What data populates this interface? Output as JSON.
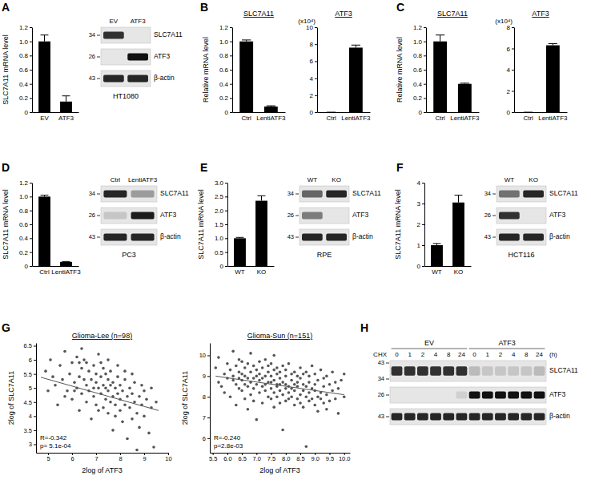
{
  "chart_data": [
    {
      "type": "bar",
      "panel": "A",
      "y_label": "SLC7A11 mRNA level",
      "categories": [
        "EV",
        "ATF3"
      ],
      "values": [
        1.0,
        0.15
      ],
      "errors": [
        0.09,
        0.08
      ],
      "color": "#000000",
      "ylim": [
        0,
        1.2
      ],
      "yticks": [
        0,
        0.2,
        0.4,
        0.6,
        0.8,
        {
          "value": 1,
          "label": "1.0"
        },
        1.2
      ]
    },
    {
      "type": "blot",
      "title": "HT1080",
      "lanes": [
        "EV",
        "ATF3"
      ],
      "rows": [
        {
          "name": "SLC7A11",
          "kda": [
            34
          ],
          "bands": [
            0.85,
            0.0
          ]
        },
        {
          "name": "ATF3",
          "kda": [
            26
          ],
          "bands": [
            0.0,
            1.0
          ]
        },
        {
          "name": "β-actin",
          "kda": [
            43
          ],
          "bands": [
            0.9,
            0.9
          ]
        }
      ]
    },
    {
      "type": "bar",
      "panel": "B",
      "title": "SLC7A11",
      "y_label": "Relative mRNA level",
      "categories": [
        "Ctrl",
        "LentiATF3"
      ],
      "values": [
        1.0,
        0.08
      ],
      "errors": [
        0.02,
        0.01
      ],
      "color": "#000000",
      "ylim": [
        0,
        1.2
      ],
      "yticks": [
        0,
        0.2,
        0.4,
        0.6,
        0.8,
        {
          "value": 1,
          "label": "1.0"
        },
        1.2
      ]
    },
    {
      "type": "bar",
      "title": "ATF3",
      "annotations": [
        "(x10⁴)"
      ],
      "categories": [
        "Ctrl",
        "LentiATF3"
      ],
      "values": [
        0,
        7.6
      ],
      "errors": [
        0,
        0.3
      ],
      "color": "#000000",
      "ylim": [
        0,
        10
      ],
      "yticks": [
        0,
        2,
        4,
        6,
        8,
        10
      ]
    },
    {
      "type": "bar",
      "panel": "C",
      "title": "SLC7A11",
      "y_label": "Relative mRNA level",
      "categories": [
        "Ctrl",
        "LentiATF3"
      ],
      "values": [
        1.0,
        0.4
      ],
      "errors": [
        0.09,
        0.01
      ],
      "color": "#000000",
      "ylim": [
        0,
        1.2
      ],
      "yticks": [
        0,
        0.2,
        0.4,
        0.6,
        0.8,
        {
          "value": 1,
          "label": "1.0"
        },
        1.2
      ]
    },
    {
      "type": "bar",
      "title": "ATF3",
      "annotations": [
        "(x10⁴)"
      ],
      "categories": [
        "Ctrl",
        "LentiATF3"
      ],
      "values": [
        0,
        6.3
      ],
      "errors": [
        0,
        0.15
      ],
      "color": "#000000",
      "ylim": [
        0,
        8
      ],
      "yticks": [
        0,
        2,
        4,
        6,
        8
      ]
    },
    {
      "type": "bar",
      "panel": "D",
      "y_label": "SLC7A11 mRNA level",
      "categories": [
        "Ctrl",
        "LentiATF3"
      ],
      "values": [
        1.0,
        0.06
      ],
      "errors": [
        0.02,
        0.005
      ],
      "color": "#000000",
      "ylim": [
        0,
        1.2
      ],
      "yticks": [
        0,
        0.2,
        0.4,
        0.6,
        0.8,
        {
          "value": 1,
          "label": "1.0"
        },
        1.2
      ]
    },
    {
      "type": "blot",
      "title": "PC3",
      "lanes": [
        "Ctrl",
        "LentiATF3"
      ],
      "rows": [
        {
          "name": "SLC7A11",
          "kda": [
            34
          ],
          "bands": [
            0.9,
            0.35
          ]
        },
        {
          "name": "ATF3",
          "kda": [
            26
          ],
          "bands": [
            0.15,
            0.95
          ]
        },
        {
          "name": "β-actin",
          "kda": [
            43
          ],
          "bands": [
            0.9,
            0.9
          ]
        }
      ]
    },
    {
      "type": "bar",
      "panel": "E",
      "y_label": "SLC7A11 mRNA level",
      "categories": [
        "WT",
        "KO"
      ],
      "values": [
        1.0,
        2.35
      ],
      "errors": [
        0.03,
        0.18
      ],
      "color": "#000000",
      "ylim": [
        0,
        3
      ],
      "yticks": [
        0,
        0.5,
        {
          "value": 1,
          "label": "1.0"
        },
        1.5,
        {
          "value": 2,
          "label": "2.0"
        },
        2.5,
        {
          "value": 3,
          "label": "3.0"
        }
      ]
    },
    {
      "type": "blot",
      "title": "RPE",
      "lanes": [
        "WT",
        "KO"
      ],
      "rows": [
        {
          "name": "SLC7A11",
          "kda": [
            34
          ],
          "bands": [
            0.6,
            0.9
          ]
        },
        {
          "name": "ATF3",
          "kda": [
            26
          ],
          "bands": [
            0.5,
            0.0
          ]
        },
        {
          "name": "β-actin",
          "kda": [
            43
          ],
          "bands": [
            0.9,
            0.9
          ]
        }
      ]
    },
    {
      "type": "bar",
      "panel": "F",
      "y_label": "SLC7A11 mRNA level",
      "categories": [
        "WT",
        "KO"
      ],
      "values": [
        1.0,
        3.05
      ],
      "errors": [
        0.08,
        0.35
      ],
      "color": "#000000",
      "ylim": [
        0,
        4
      ],
      "yticks": [
        0,
        1,
        2,
        3,
        4
      ]
    },
    {
      "type": "blot",
      "title": "HCT116",
      "lanes": [
        "WT",
        "KO"
      ],
      "rows": [
        {
          "name": "SLC7A11",
          "kda": [
            34
          ],
          "bands": [
            0.55,
            0.9
          ]
        },
        {
          "name": "ATF3",
          "kda": [
            26
          ],
          "bands": [
            0.85,
            0.0
          ]
        },
        {
          "name": "β-actin",
          "kda": [
            43
          ],
          "bands": [
            0.9,
            0.9
          ]
        }
      ]
    },
    {
      "type": "scatter",
      "panel": "G",
      "title": "Glioma-Lee (n=98)",
      "x_label": "2log of ATF3",
      "y_label": "2log of SLC7A11",
      "annotations": [
        "R=-0.342",
        "p= 5.1e-04"
      ],
      "xlim": [
        4.5,
        10
      ],
      "xticks": [
        5,
        6,
        7,
        8,
        9,
        10
      ],
      "ylim": [
        2.7,
        6.6
      ],
      "yticks": [
        3,
        3.5,
        4,
        4.5,
        5,
        5.5,
        6,
        6.5
      ],
      "series": [
        {
          "type": "scatter",
          "marker": "circle",
          "color": "#555555",
          "x": [
            4.9,
            5.1,
            5.3,
            5.4,
            5.5,
            5.6,
            5.7,
            5.8,
            5.9,
            6.0,
            6.0,
            6.1,
            6.2,
            6.2,
            6.3,
            6.3,
            6.4,
            6.4,
            6.5,
            6.5,
            6.6,
            6.6,
            6.7,
            6.7,
            6.8,
            6.8,
            6.9,
            6.9,
            7.0,
            7.0,
            7.0,
            7.1,
            7.1,
            7.2,
            7.2,
            7.3,
            7.3,
            7.3,
            7.4,
            7.4,
            7.5,
            7.5,
            7.5,
            7.6,
            7.6,
            7.7,
            7.7,
            7.7,
            7.8,
            7.8,
            7.9,
            7.9,
            8.0,
            8.0,
            8.0,
            8.1,
            8.1,
            8.2,
            8.2,
            8.3,
            8.3,
            8.4,
            8.4,
            8.5,
            8.5,
            8.6,
            8.6,
            8.7,
            8.8,
            8.8,
            8.9,
            9.0,
            9.0,
            9.1,
            9.2,
            9.3,
            9.4,
            9.5,
            6.1,
            6.6,
            7.2,
            7.6,
            7.9,
            8.2,
            5.2,
            5.7,
            6.3,
            6.9,
            7.4,
            7.8,
            8.5,
            8.9,
            9.3,
            5.0,
            6.4,
            7.1,
            8.7,
            7.5
          ],
          "values": [
            5.6,
            6.0,
            5.1,
            4.4,
            5.8,
            5.3,
            6.3,
            4.9,
            5.5,
            5.9,
            4.6,
            5.2,
            6.1,
            5.0,
            5.4,
            4.2,
            5.7,
            4.8,
            5.3,
            6.0,
            4.5,
            5.1,
            5.6,
            4.9,
            5.3,
            3.9,
            5.8,
            4.7,
            5.2,
            5.5,
            4.4,
            5.0,
            6.2,
            4.8,
            5.4,
            4.3,
            5.1,
            5.7,
            4.6,
            5.0,
            5.3,
            4.1,
            4.9,
            5.6,
            4.5,
            5.2,
            4.7,
            3.5,
            5.0,
            4.4,
            5.4,
            4.8,
            4.2,
            5.1,
            4.6,
            3.8,
            4.9,
            5.3,
            4.4,
            4.7,
            3.2,
            5.0,
            4.3,
            4.8,
            3.9,
            4.5,
            5.2,
            4.1,
            4.7,
            3.6,
            4.4,
            4.9,
            4.0,
            4.6,
            3.4,
            4.3,
            2.9,
            4.5,
            4.9,
            5.9,
            5.9,
            5.1,
            5.8,
            5.6,
            5.4,
            4.7,
            5.9,
            5.0,
            5.5,
            4.0,
            5.5,
            5.1,
            5.0,
            4.9,
            6.4,
            4.2,
            2.8,
            6.0
          ]
        },
        {
          "type": "line",
          "line_style": "solid",
          "color": "#555555",
          "x": [
            4.7,
            9.6
          ],
          "values": [
            5.38,
            4.2
          ]
        }
      ]
    },
    {
      "type": "scatter",
      "title": "Glioma-Sun (n=151)",
      "x_label": "2log of ATF3",
      "y_label": "2log of SLC7A11",
      "annotations": [
        "R=-0.240",
        "p=2.8e-03"
      ],
      "xlim": [
        5.4,
        10.2
      ],
      "xticks": [
        5.5,
        {
          "value": 6,
          "label": "6.0"
        },
        6.5,
        {
          "value": 7,
          "label": "7.0"
        },
        7.5,
        {
          "value": 8,
          "label": "8.0"
        },
        8.5,
        {
          "value": 9,
          "label": "9.0"
        },
        9.5,
        {
          "value": 10,
          "label": "10.0"
        }
      ],
      "ylim": [
        5.3,
        10.6
      ],
      "yticks": [
        6,
        7,
        8,
        9,
        10
      ],
      "series": [
        {
          "type": "scatter",
          "marker": "circle",
          "color": "#555555",
          "x": [
            5.6,
            5.7,
            5.7,
            5.8,
            5.9,
            5.9,
            6.0,
            6.0,
            6.1,
            6.1,
            6.2,
            6.2,
            6.2,
            6.3,
            6.3,
            6.3,
            6.4,
            6.4,
            6.4,
            6.4,
            6.5,
            6.5,
            6.5,
            6.5,
            6.6,
            6.6,
            6.6,
            6.6,
            6.7,
            6.7,
            6.7,
            6.7,
            6.8,
            6.8,
            6.8,
            6.8,
            6.9,
            6.9,
            6.9,
            6.9,
            7.0,
            7.0,
            7.0,
            7.0,
            7.1,
            7.1,
            7.1,
            7.1,
            7.2,
            7.2,
            7.2,
            7.2,
            7.3,
            7.3,
            7.3,
            7.3,
            7.4,
            7.4,
            7.4,
            7.4,
            7.5,
            7.5,
            7.5,
            7.5,
            7.5,
            7.6,
            7.6,
            7.6,
            7.6,
            7.6,
            7.7,
            7.7,
            7.7,
            7.7,
            7.7,
            7.8,
            7.8,
            7.8,
            7.8,
            7.8,
            7.9,
            7.9,
            7.9,
            7.9,
            8.0,
            8.0,
            8.0,
            8.0,
            8.0,
            8.1,
            8.1,
            8.1,
            8.1,
            8.2,
            8.2,
            8.2,
            8.2,
            8.3,
            8.3,
            8.3,
            8.3,
            8.4,
            8.4,
            8.4,
            8.4,
            8.5,
            8.5,
            8.5,
            8.5,
            8.6,
            8.6,
            8.6,
            8.6,
            8.7,
            8.7,
            8.7,
            8.7,
            8.8,
            8.8,
            8.8,
            8.8,
            8.9,
            8.9,
            8.9,
            9.0,
            9.0,
            9.0,
            9.0,
            9.1,
            9.1,
            9.1,
            9.2,
            9.2,
            9.2,
            9.3,
            9.3,
            9.3,
            9.4,
            9.4,
            9.4,
            9.5,
            9.5,
            9.6,
            9.6,
            9.7,
            9.7,
            9.8,
            9.8,
            9.9,
            10.0,
            10.0
          ],
          "values": [
            9.4,
            8.7,
            9.9,
            8.5,
            9.1,
            8.2,
            9.6,
            8.9,
            9.3,
            8.0,
            10.2,
            8.8,
            9.0,
            9.5,
            8.6,
            7.6,
            9.2,
            8.4,
            9.8,
            8.9,
            9.1,
            8.3,
            9.7,
            8.8,
            8.6,
            9.4,
            7.9,
            9.0,
            9.6,
            8.5,
            8.9,
            7.4,
            9.2,
            8.7,
            10.1,
            8.1,
            8.9,
            9.5,
            8.4,
            7.8,
            9.3,
            8.6,
            9.0,
            6.9,
            8.8,
            9.7,
            8.2,
            9.1,
            8.5,
            9.4,
            8.9,
            7.7,
            9.0,
            8.3,
            9.8,
            8.6,
            8.7,
            9.2,
            8.0,
            9.5,
            9.0,
            8.4,
            9.6,
            7.9,
            8.7,
            9.3,
            8.2,
            8.8,
            10.0,
            7.5,
            8.6,
            9.1,
            8.0,
            9.4,
            8.5,
            8.9,
            7.7,
            9.2,
            8.3,
            8.6,
            9.5,
            8.1,
            8.7,
            6.4,
            8.4,
            9.0,
            7.8,
            9.3,
            8.6,
            8.2,
            9.6,
            8.5,
            7.9,
            8.8,
            8.0,
            9.1,
            8.4,
            9.2,
            7.6,
            8.6,
            8.3,
            8.5,
            9.0,
            7.9,
            8.7,
            8.9,
            8.1,
            9.4,
            7.7,
            8.3,
            9.1,
            7.5,
            8.6,
            9.2,
            8.0,
            8.5,
            5.6,
            8.7,
            7.8,
            9.0,
            8.2,
            8.4,
            9.5,
            7.9,
            8.6,
            7.6,
            9.1,
            8.3,
            8.0,
            8.8,
            7.3,
            9.3,
            8.2,
            7.9,
            8.5,
            7.7,
            8.9,
            8.1,
            9.0,
            7.4,
            8.6,
            7.8,
            8.3,
            9.2,
            7.9,
            8.7,
            8.4,
            7.2,
            8.8,
            8.0,
            9.1
          ]
        },
        {
          "type": "line",
          "line_style": "solid",
          "color": "#555555",
          "x": [
            5.6,
            10.0
          ],
          "values": [
            9.0,
            8.1
          ]
        }
      ]
    },
    {
      "type": "blot",
      "panel": "H",
      "lane_title": "CHX",
      "lane_unit": "(h)",
      "lane_groups": [
        {
          "name": "EV",
          "lanes": [
            0,
            1,
            2,
            4,
            8,
            24
          ]
        },
        {
          "name": "ATF3",
          "lanes": [
            0,
            1,
            2,
            4,
            8,
            24
          ]
        }
      ],
      "rows": [
        {
          "name": "SLC7A11",
          "kda": [
            43,
            34
          ],
          "bands": [
            0.85,
            0.85,
            0.85,
            0.85,
            0.85,
            0.85,
            0.2,
            0.15,
            0.15,
            0.15,
            0.15,
            0.2
          ]
        },
        {
          "name": "ATF3",
          "kda": [
            26
          ],
          "bands": [
            0,
            0,
            0,
            0,
            0,
            0.1,
            1,
            1,
            1,
            1,
            1,
            1
          ]
        },
        {
          "name": "β-actin",
          "kda": [
            43
          ],
          "bands": [
            0.9,
            0.9,
            0.9,
            0.9,
            0.9,
            0.9,
            0.9,
            0.9,
            0.9,
            0.9,
            0.9,
            0.9
          ]
        }
      ]
    }
  ]
}
